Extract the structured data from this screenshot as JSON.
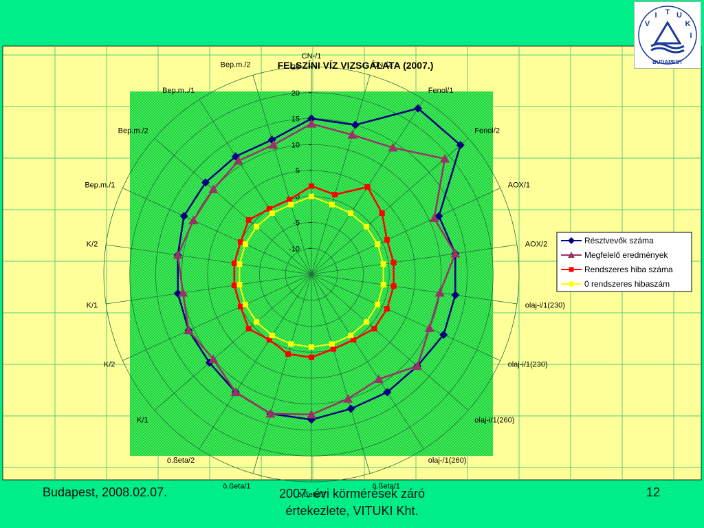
{
  "footer": {
    "date": "Budapest, 2008.02.07.",
    "subtitle_line1": "2007. évi körmérések záró",
    "subtitle_line2": "értekezlete, VITUKI Kht.",
    "page_number": "12"
  },
  "logo": {
    "letters": [
      "V",
      "I",
      "T",
      "U",
      "K",
      "I"
    ],
    "bottom_text": "BUDAPEST"
  },
  "colors": {
    "slide_background": "#00ee88",
    "chart_background": "#ffff99",
    "plot_background": "#33dd55",
    "grid_line": "#33cc66",
    "series_1": "#000080",
    "series_2": "#993366",
    "series_3": "#ff0000",
    "series_4": "#ffff00"
  },
  "chart_data": {
    "type": "radar",
    "title": "FELSZÍNI VÍZ VIZSGÁLATA (2007.)",
    "categories": [
      "CN-/1",
      "CN-/2",
      "Fenol/1",
      "Fenol/2",
      "AOX/1",
      "AOX/2",
      "olaj-i/1(230)",
      "olaj-i/1(230)",
      "olaj-i/1(260)",
      "olaj-/1(260)",
      "ö.ßeta/1",
      "ö.ßeta/2",
      "ö.ßeta/1",
      "ö.ßeta/2",
      "K/1",
      "K/2",
      "K/1",
      "K/2",
      "Bep.m./1",
      "Bep.m./2",
      "Bep.m../1",
      "Bep.m./2"
    ],
    "rlim": [
      -15,
      25
    ],
    "ticks": [
      25,
      20,
      15,
      10,
      5,
      0,
      -5,
      -10
    ],
    "tick_labels": [
      "25",
      "20",
      "15",
      "10",
      "5",
      "0",
      "-5",
      "-10"
    ],
    "legend_position": "right",
    "grid": true,
    "series": [
      {
        "name": "Résztvevők száma",
        "marker": "diamond",
        "values": [
          15,
          15,
          23,
          23,
          12,
          13,
          13,
          13,
          12,
          12,
          12,
          13,
          13,
          12,
          11,
          11,
          11,
          11,
          12,
          12,
          12,
          12
        ]
      },
      {
        "name": "Megfelelő eredmények",
        "marker": "triangle",
        "values": [
          14,
          13,
          14,
          19,
          11,
          13,
          10,
          10,
          12,
          9,
          10,
          12,
          13,
          12,
          10,
          11,
          10,
          11,
          10,
          10,
          11,
          11
        ]
      },
      {
        "name": "Rendszeres hiba száma",
        "marker": "square",
        "values": [
          2,
          1,
          5,
          3,
          1,
          1,
          1,
          1,
          1,
          0,
          0,
          1,
          1,
          0,
          1,
          0,
          0,
          0,
          0,
          1,
          0,
          0
        ]
      },
      {
        "name": "0 rendszeres hibaszám",
        "marker": "square",
        "values": [
          0,
          -1,
          -1,
          -1,
          -1,
          -1,
          -1,
          -1,
          -1,
          -1,
          -1,
          -1,
          -1,
          -1,
          -1,
          -1,
          -1,
          -1,
          -1,
          -1,
          -1,
          -1
        ]
      }
    ]
  }
}
